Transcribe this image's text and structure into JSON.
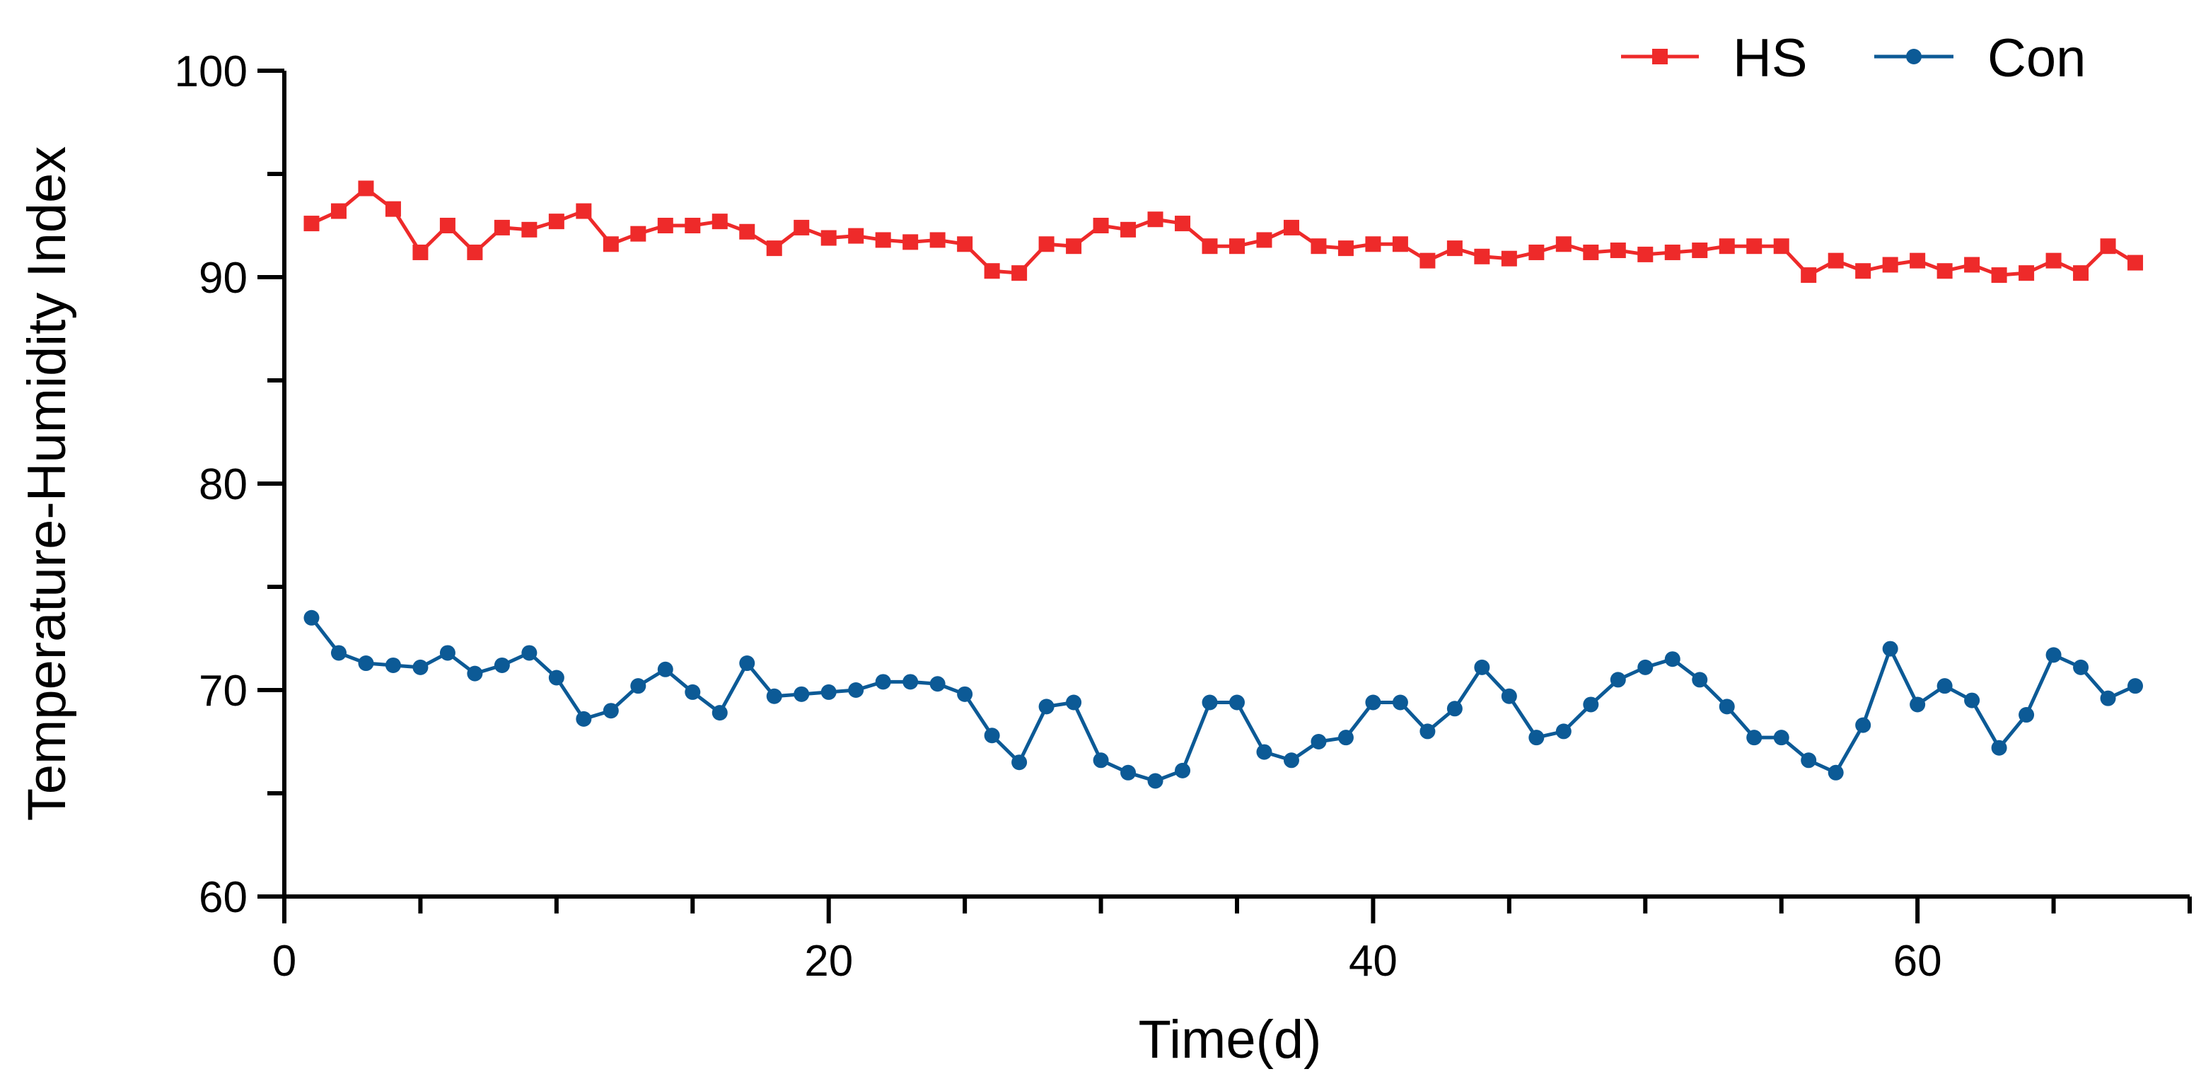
{
  "chart_data": {
    "type": "line",
    "xlabel": "Time(d)",
    "ylabel": "Temperature-Humidity Index",
    "xlim": [
      0,
      70
    ],
    "ylim": [
      60,
      100
    ],
    "x_ticks": [
      0,
      20,
      40,
      60
    ],
    "x_minor_ticks": [
      5,
      10,
      15,
      25,
      30,
      35,
      45,
      50,
      55,
      65,
      70
    ],
    "y_ticks": [
      60,
      70,
      80,
      90,
      100
    ],
    "y_minor_ticks": [
      65,
      75,
      85,
      95
    ],
    "legend_position": "top-right",
    "grid": false,
    "x": [
      1,
      2,
      3,
      4,
      5,
      6,
      7,
      8,
      9,
      10,
      11,
      12,
      13,
      14,
      15,
      16,
      17,
      18,
      19,
      20,
      21,
      22,
      23,
      24,
      25,
      26,
      27,
      28,
      29,
      30,
      31,
      32,
      33,
      34,
      35,
      36,
      37,
      38,
      39,
      40,
      41,
      42,
      43,
      44,
      45,
      46,
      47,
      48,
      49,
      50,
      51,
      52,
      53,
      54,
      55,
      56,
      57,
      58,
      59,
      60,
      61,
      62,
      63,
      64,
      65,
      66,
      67,
      68
    ],
    "series": [
      {
        "name": "HS",
        "color": "#ee2a2a",
        "marker": "square",
        "values": [
          92.6,
          93.2,
          94.3,
          93.3,
          91.2,
          92.5,
          91.2,
          92.4,
          92.3,
          92.7,
          93.2,
          91.6,
          92.1,
          92.5,
          92.5,
          92.7,
          92.2,
          91.4,
          92.4,
          91.9,
          92.0,
          91.8,
          91.7,
          91.8,
          91.6,
          90.3,
          90.2,
          91.6,
          91.5,
          92.5,
          92.3,
          92.8,
          92.6,
          91.5,
          91.5,
          91.8,
          92.4,
          91.5,
          91.4,
          91.6,
          91.6,
          90.8,
          91.4,
          91.0,
          90.9,
          91.2,
          91.6,
          91.2,
          91.3,
          91.1,
          91.2,
          91.3,
          91.5,
          91.5,
          91.5,
          90.1,
          90.8,
          90.3,
          90.6,
          90.8,
          90.3,
          90.6,
          90.1,
          90.2,
          90.8,
          90.2,
          91.5,
          90.7
        ]
      },
      {
        "name": "Con",
        "color": "#0c5a96",
        "marker": "circle",
        "values": [
          73.5,
          71.8,
          71.3,
          71.2,
          71.1,
          71.8,
          70.8,
          71.2,
          71.8,
          70.6,
          68.6,
          69.0,
          70.2,
          71.0,
          69.9,
          68.9,
          71.3,
          69.7,
          69.8,
          69.9,
          70.0,
          70.4,
          70.4,
          70.3,
          69.8,
          67.8,
          66.5,
          69.2,
          69.4,
          66.6,
          66.0,
          65.6,
          66.1,
          69.4,
          69.4,
          67.0,
          66.6,
          67.5,
          67.7,
          69.4,
          69.4,
          68.0,
          69.1,
          71.1,
          69.7,
          67.7,
          68.0,
          69.3,
          70.5,
          71.1,
          71.5,
          70.5,
          69.2,
          67.7,
          67.7,
          66.6,
          66.0,
          68.3,
          72.0,
          69.3,
          70.2,
          69.5,
          67.2,
          68.8,
          71.7,
          71.1,
          69.6,
          70.2
        ]
      }
    ]
  }
}
